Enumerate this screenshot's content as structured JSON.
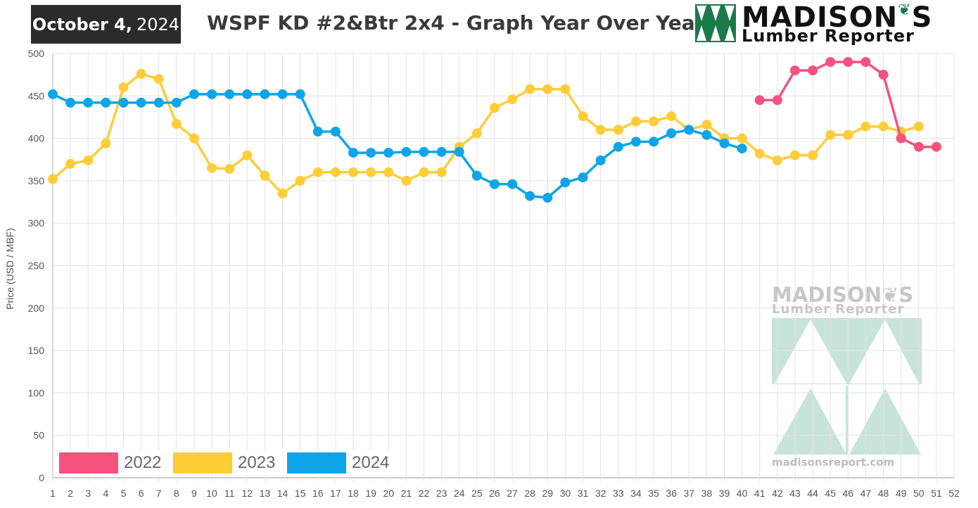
{
  "header": {
    "date_month_day": "October 4,",
    "date_year": "2024",
    "title": "WSPF KD #2&Btr 2x4 - Graph Year Over Year"
  },
  "logo": {
    "name": "MADISON",
    "name_suffix": "S",
    "subtitle": "Lumber Reporter"
  },
  "watermark": {
    "name": "MADISON",
    "name_suffix": "S",
    "subtitle": "Lumber Reporter",
    "url": "madisonsreport.com"
  },
  "colors": {
    "2022": "#f5527e",
    "2023": "#ffcd38",
    "2024": "#0ea5e8",
    "logo_green": "#1a7a4a",
    "watermark_green": "#c8e3da"
  },
  "chart_data": {
    "type": "line",
    "ylabel": "Price (USD / MBF)",
    "xlabel": "",
    "ylim": [
      0,
      500
    ],
    "yticks": [
      0,
      50,
      100,
      150,
      200,
      250,
      300,
      350,
      400,
      450,
      500
    ],
    "x": [
      1,
      2,
      3,
      4,
      5,
      6,
      7,
      8,
      9,
      10,
      11,
      12,
      13,
      14,
      15,
      16,
      17,
      18,
      19,
      20,
      21,
      22,
      23,
      24,
      25,
      26,
      27,
      28,
      29,
      30,
      31,
      32,
      33,
      34,
      35,
      36,
      37,
      38,
      39,
      40,
      41,
      42,
      43,
      44,
      45,
      46,
      47,
      48,
      49,
      50,
      51,
      52
    ],
    "grid": true,
    "legend_position": "bottom-left",
    "series": [
      {
        "name": "2022",
        "color": "#f5527e",
        "points": [
          [
            41,
            445
          ],
          [
            42,
            445
          ],
          [
            43,
            480
          ],
          [
            44,
            480
          ],
          [
            45,
            490
          ],
          [
            46,
            490
          ],
          [
            47,
            490
          ],
          [
            48,
            475
          ],
          [
            49,
            400
          ],
          [
            50,
            390
          ],
          [
            51,
            390
          ]
        ]
      },
      {
        "name": "2023",
        "color": "#ffcd38",
        "points": [
          [
            1,
            352
          ],
          [
            2,
            370
          ],
          [
            3,
            374
          ],
          [
            4,
            394
          ],
          [
            5,
            460
          ],
          [
            6,
            476
          ],
          [
            7,
            470
          ],
          [
            8,
            417
          ],
          [
            9,
            400
          ],
          [
            10,
            365
          ],
          [
            11,
            364
          ],
          [
            12,
            380
          ],
          [
            13,
            356
          ],
          [
            14,
            335
          ],
          [
            15,
            350
          ],
          [
            16,
            360
          ],
          [
            17,
            360
          ],
          [
            18,
            360
          ],
          [
            19,
            360
          ],
          [
            20,
            360
          ],
          [
            21,
            350
          ],
          [
            22,
            360
          ],
          [
            23,
            360
          ],
          [
            24,
            390
          ],
          [
            25,
            406
          ],
          [
            26,
            436
          ],
          [
            27,
            446
          ],
          [
            28,
            458
          ],
          [
            29,
            458
          ],
          [
            30,
            458
          ],
          [
            31,
            426
          ],
          [
            32,
            410
          ],
          [
            33,
            410
          ],
          [
            34,
            420
          ],
          [
            35,
            420
          ],
          [
            36,
            426
          ],
          [
            37,
            410
          ],
          [
            38,
            416
          ],
          [
            39,
            400
          ],
          [
            40,
            400
          ],
          [
            41,
            382
          ],
          [
            42,
            374
          ],
          [
            43,
            380
          ],
          [
            44,
            380
          ],
          [
            45,
            404
          ],
          [
            46,
            404
          ],
          [
            47,
            414
          ],
          [
            48,
            414
          ],
          [
            49,
            408
          ],
          [
            50,
            414
          ]
        ]
      },
      {
        "name": "2024",
        "color": "#0ea5e8",
        "points": [
          [
            1,
            452
          ],
          [
            2,
            442
          ],
          [
            3,
            442
          ],
          [
            4,
            442
          ],
          [
            5,
            442
          ],
          [
            6,
            442
          ],
          [
            7,
            442
          ],
          [
            8,
            442
          ],
          [
            9,
            452
          ],
          [
            10,
            452
          ],
          [
            11,
            452
          ],
          [
            12,
            452
          ],
          [
            13,
            452
          ],
          [
            14,
            452
          ],
          [
            15,
            452
          ],
          [
            16,
            408
          ],
          [
            17,
            408
          ],
          [
            18,
            383
          ],
          [
            19,
            383
          ],
          [
            20,
            383
          ],
          [
            21,
            384
          ],
          [
            22,
            384
          ],
          [
            23,
            384
          ],
          [
            24,
            384
          ],
          [
            25,
            356
          ],
          [
            26,
            346
          ],
          [
            27,
            346
          ],
          [
            28,
            332
          ],
          [
            29,
            330
          ],
          [
            30,
            348
          ],
          [
            31,
            354
          ],
          [
            32,
            374
          ],
          [
            33,
            390
          ],
          [
            34,
            396
          ],
          [
            35,
            396
          ],
          [
            36,
            406
          ],
          [
            37,
            410
          ],
          [
            38,
            404
          ],
          [
            39,
            394
          ],
          [
            40,
            388
          ]
        ]
      }
    ]
  }
}
